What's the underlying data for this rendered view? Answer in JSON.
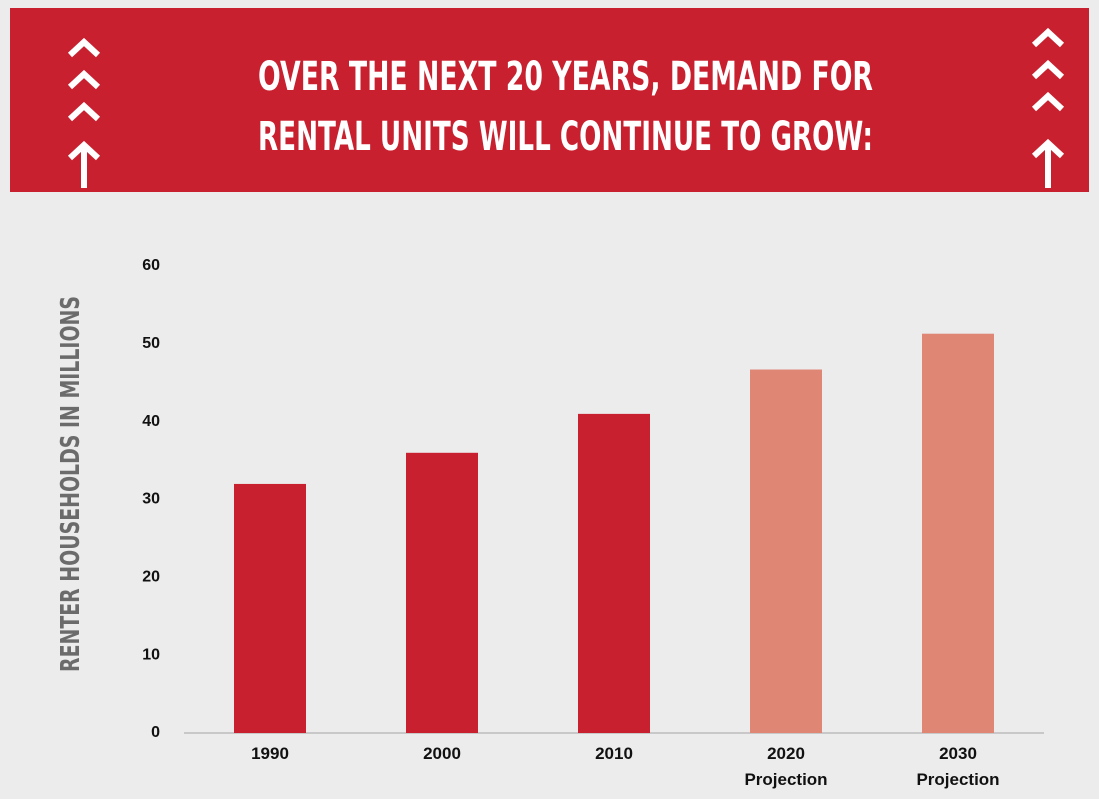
{
  "chart_data": {
    "type": "bar",
    "title": [
      "OVER THE NEXT 20 YEARS, DEMAND FOR",
      "RENTAL UNITS WILL CONTINUE TO GROW:"
    ],
    "y_label": "RENTER HOUSEHOLDS IN MILLIONS",
    "categories": [
      "1990",
      "2000",
      "2010",
      "2020 Projection",
      "2030 Projection"
    ],
    "values": [
      32,
      36,
      41,
      46.7,
      51.3
    ],
    "colors": [
      "#c8202f",
      "#c8202f",
      "#c8202f",
      "#e08675",
      "#e08675"
    ],
    "ylim": [
      0,
      60
    ],
    "yticks": [
      0,
      10,
      20,
      30,
      40,
      50,
      60
    ],
    "grid": false
  }
}
